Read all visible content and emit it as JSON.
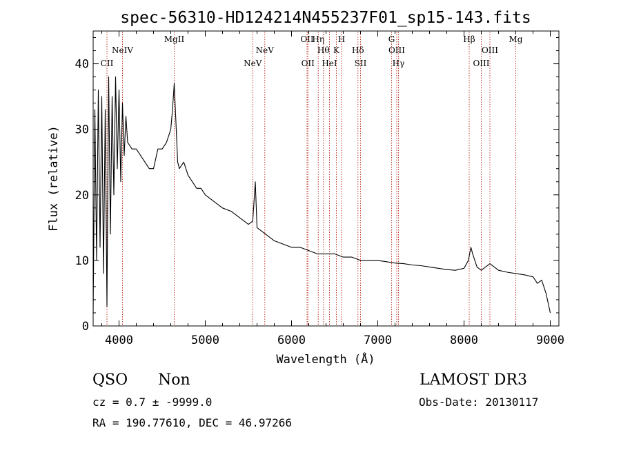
{
  "chart_data": {
    "type": "line",
    "title": "spec-56310-HD124214N455237F01_sp15-143.fits",
    "xlabel": "Wavelength (Å)",
    "ylabel": "Flux (relative)",
    "xlim": [
      3700,
      9100
    ],
    "ylim": [
      0,
      45
    ],
    "x_ticks": [
      4000,
      5000,
      6000,
      7000,
      8000,
      9000
    ],
    "y_ticks": [
      0,
      10,
      20,
      30,
      40
    ],
    "grid": false,
    "line_color": "#000000",
    "marker_color": "#c0392b",
    "spectrum": {
      "x": [
        3700,
        3720,
        3740,
        3760,
        3780,
        3800,
        3820,
        3840,
        3860,
        3880,
        3900,
        3920,
        3940,
        3960,
        3980,
        4000,
        4020,
        4040,
        4060,
        4080,
        4100,
        4150,
        4200,
        4250,
        4300,
        4350,
        4400,
        4450,
        4500,
        4550,
        4600,
        4620,
        4640,
        4660,
        4680,
        4700,
        4750,
        4800,
        4850,
        4900,
        4950,
        5000,
        5100,
        5200,
        5300,
        5400,
        5500,
        5550,
        5580,
        5600,
        5700,
        5800,
        5900,
        6000,
        6100,
        6200,
        6300,
        6400,
        6500,
        6600,
        6700,
        6800,
        6900,
        7000,
        7100,
        7200,
        7300,
        7400,
        7500,
        7600,
        7700,
        7800,
        7900,
        8000,
        8050,
        8080,
        8100,
        8150,
        8200,
        8250,
        8300,
        8400,
        8500,
        8600,
        8700,
        8800,
        8850,
        8900,
        8950,
        9000
      ],
      "y": [
        2,
        33,
        10,
        36,
        12,
        35,
        8,
        33,
        3,
        38,
        14,
        35,
        20,
        38,
        24,
        36,
        22,
        34,
        26,
        32,
        28,
        27,
        27,
        26,
        25,
        24,
        24,
        27,
        27,
        28,
        30,
        33,
        37,
        31,
        25,
        24,
        25,
        23,
        22,
        21,
        21,
        20,
        19,
        18,
        17.5,
        16.5,
        15.5,
        16,
        22,
        15,
        14,
        13,
        12.5,
        12,
        12,
        11.5,
        11,
        11,
        11,
        10.5,
        10.5,
        10,
        10,
        10,
        9.8,
        9.6,
        9.5,
        9.3,
        9.2,
        9.0,
        8.8,
        8.6,
        8.5,
        8.8,
        10,
        12,
        11,
        9,
        8.5,
        9,
        9.5,
        8.5,
        8.2,
        8,
        7.8,
        7.5,
        6.5,
        7,
        5,
        2
      ]
    },
    "lines": [
      {
        "label": "CII",
        "x": 3860,
        "row": 3
      },
      {
        "label": "NeIV",
        "x": 4040,
        "row": 2
      },
      {
        "label": "MgII",
        "x": 4640,
        "row": 1
      },
      {
        "label": "NeV",
        "x": 5550,
        "row": 3
      },
      {
        "label": "NeV",
        "x": 5690,
        "row": 2
      },
      {
        "label": "OII",
        "x": 6180,
        "row": 1
      },
      {
        "label": "OII",
        "x": 6190,
        "row": 3
      },
      {
        "label": "Hη",
        "x": 6310,
        "row": 1
      },
      {
        "label": "Hθ",
        "x": 6370,
        "row": 2
      },
      {
        "label": "HeI",
        "x": 6440,
        "row": 3
      },
      {
        "label": "K",
        "x": 6520,
        "row": 2
      },
      {
        "label": "H",
        "x": 6580,
        "row": 1
      },
      {
        "label": "Hδ",
        "x": 6770,
        "row": 2
      },
      {
        "label": "SII",
        "x": 6800,
        "row": 3
      },
      {
        "label": "G",
        "x": 7160,
        "row": 1
      },
      {
        "label": "OIII",
        "x": 7220,
        "row": 2
      },
      {
        "label": "Hγ",
        "x": 7240,
        "row": 3
      },
      {
        "label": "Hβ",
        "x": 8060,
        "row": 1
      },
      {
        "label": "OIII",
        "x": 8200,
        "row": 3
      },
      {
        "label": "OIII",
        "x": 8300,
        "row": 2
      },
      {
        "label": "Mg",
        "x": 8600,
        "row": 1
      }
    ]
  },
  "info": {
    "class": "QSO",
    "subclass": "Non",
    "survey": "LAMOST DR3",
    "cz": "cz = 0.7 ± -9999.0",
    "obs_date": "Obs-Date: 20130117",
    "coords": "RA = 190.77610, DEC =  46.97266"
  }
}
